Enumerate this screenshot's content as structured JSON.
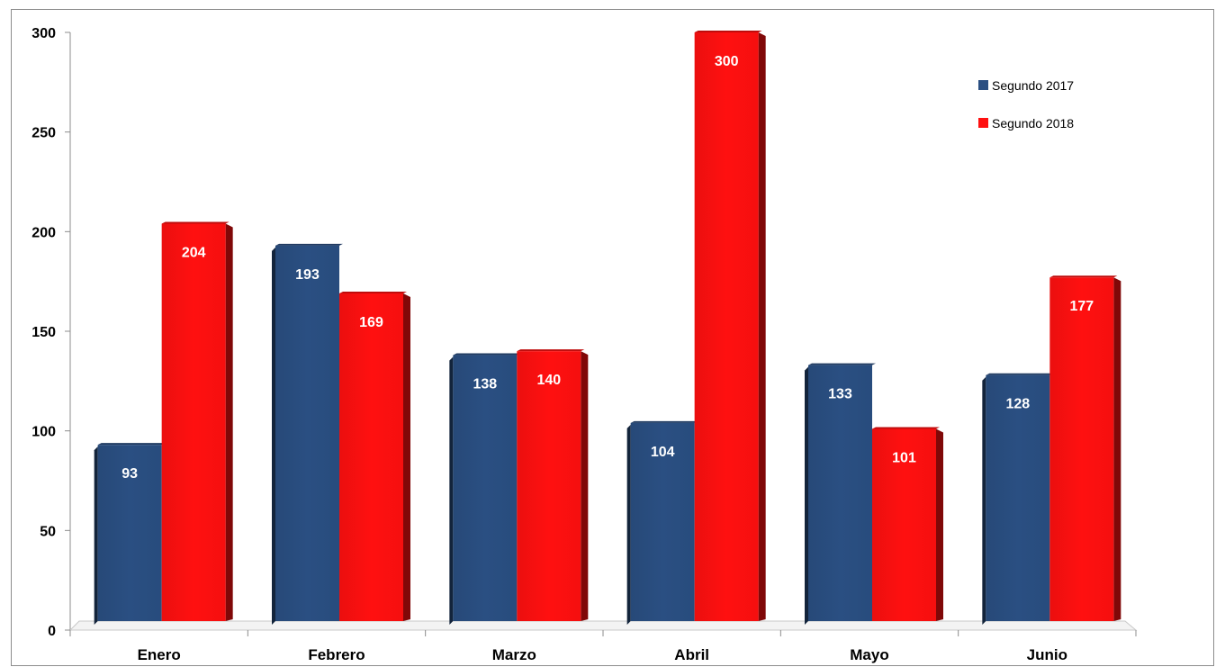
{
  "chart_data": {
    "type": "bar",
    "categories": [
      "Enero",
      "Febrero",
      "Marzo",
      "Abril",
      "Mayo",
      "Junio"
    ],
    "series": [
      {
        "name": "Segundo 2017",
        "values": [
          93,
          193,
          138,
          104,
          133,
          128
        ],
        "color": "#2a4f82"
      },
      {
        "name": "Segundo 2018",
        "values": [
          204,
          169,
          140,
          300,
          101,
          177
        ],
        "color": "#ff1010"
      }
    ],
    "ylim": [
      0,
      300
    ],
    "yticks": [
      0,
      50,
      100,
      150,
      200,
      250,
      300
    ],
    "grid": false,
    "legend": "top-right",
    "data_labels": true,
    "title": "",
    "xlabel": "",
    "ylabel": ""
  }
}
